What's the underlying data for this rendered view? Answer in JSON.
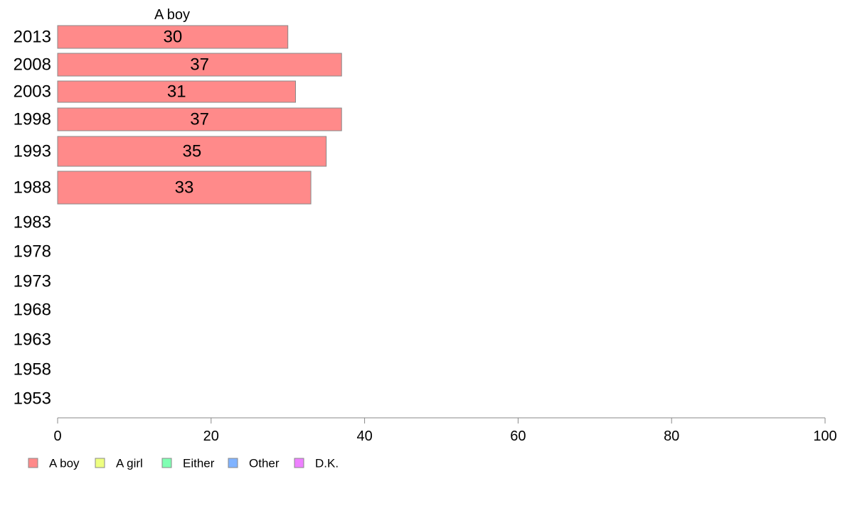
{
  "chart_data": {
    "type": "bar",
    "orientation": "horizontal",
    "stacked": true,
    "column_title": "A boy",
    "categories": [
      "2013",
      "2008",
      "2003",
      "1998",
      "1993",
      "1988",
      "1983",
      "1978",
      "1973",
      "1968",
      "1963",
      "1958",
      "1953"
    ],
    "series": [
      {
        "name": "A boy",
        "color": "#ff8a8a",
        "values": [
          30,
          37,
          31,
          37,
          35,
          33,
          null,
          null,
          null,
          null,
          null,
          null,
          null
        ],
        "labels": [
          "30",
          "37",
          "31",
          "37",
          "35",
          "33",
          "",
          "",
          "",
          "",
          "",
          "",
          ""
        ]
      },
      {
        "name": "A girl",
        "color": "#eeff80",
        "values": [
          null,
          null,
          null,
          null,
          null,
          null,
          null,
          null,
          null,
          null,
          null,
          null,
          null
        ]
      },
      {
        "name": "Either",
        "color": "#80ffb3",
        "values": [
          null,
          null,
          null,
          null,
          null,
          null,
          null,
          null,
          null,
          null,
          null,
          null,
          null
        ]
      },
      {
        "name": "Other",
        "color": "#80b3ff",
        "values": [
          null,
          null,
          null,
          null,
          null,
          null,
          null,
          null,
          null,
          null,
          null,
          null,
          null
        ]
      },
      {
        "name": "D.K.",
        "color": "#ee80ff",
        "values": [
          null,
          null,
          null,
          null,
          null,
          null,
          null,
          null,
          null,
          null,
          null,
          null,
          null
        ]
      }
    ],
    "xlim": [
      0,
      100
    ],
    "xticks": [
      "0",
      "20",
      "40",
      "60",
      "80",
      "100"
    ],
    "grid": false,
    "legend_position": "bottom-left"
  }
}
